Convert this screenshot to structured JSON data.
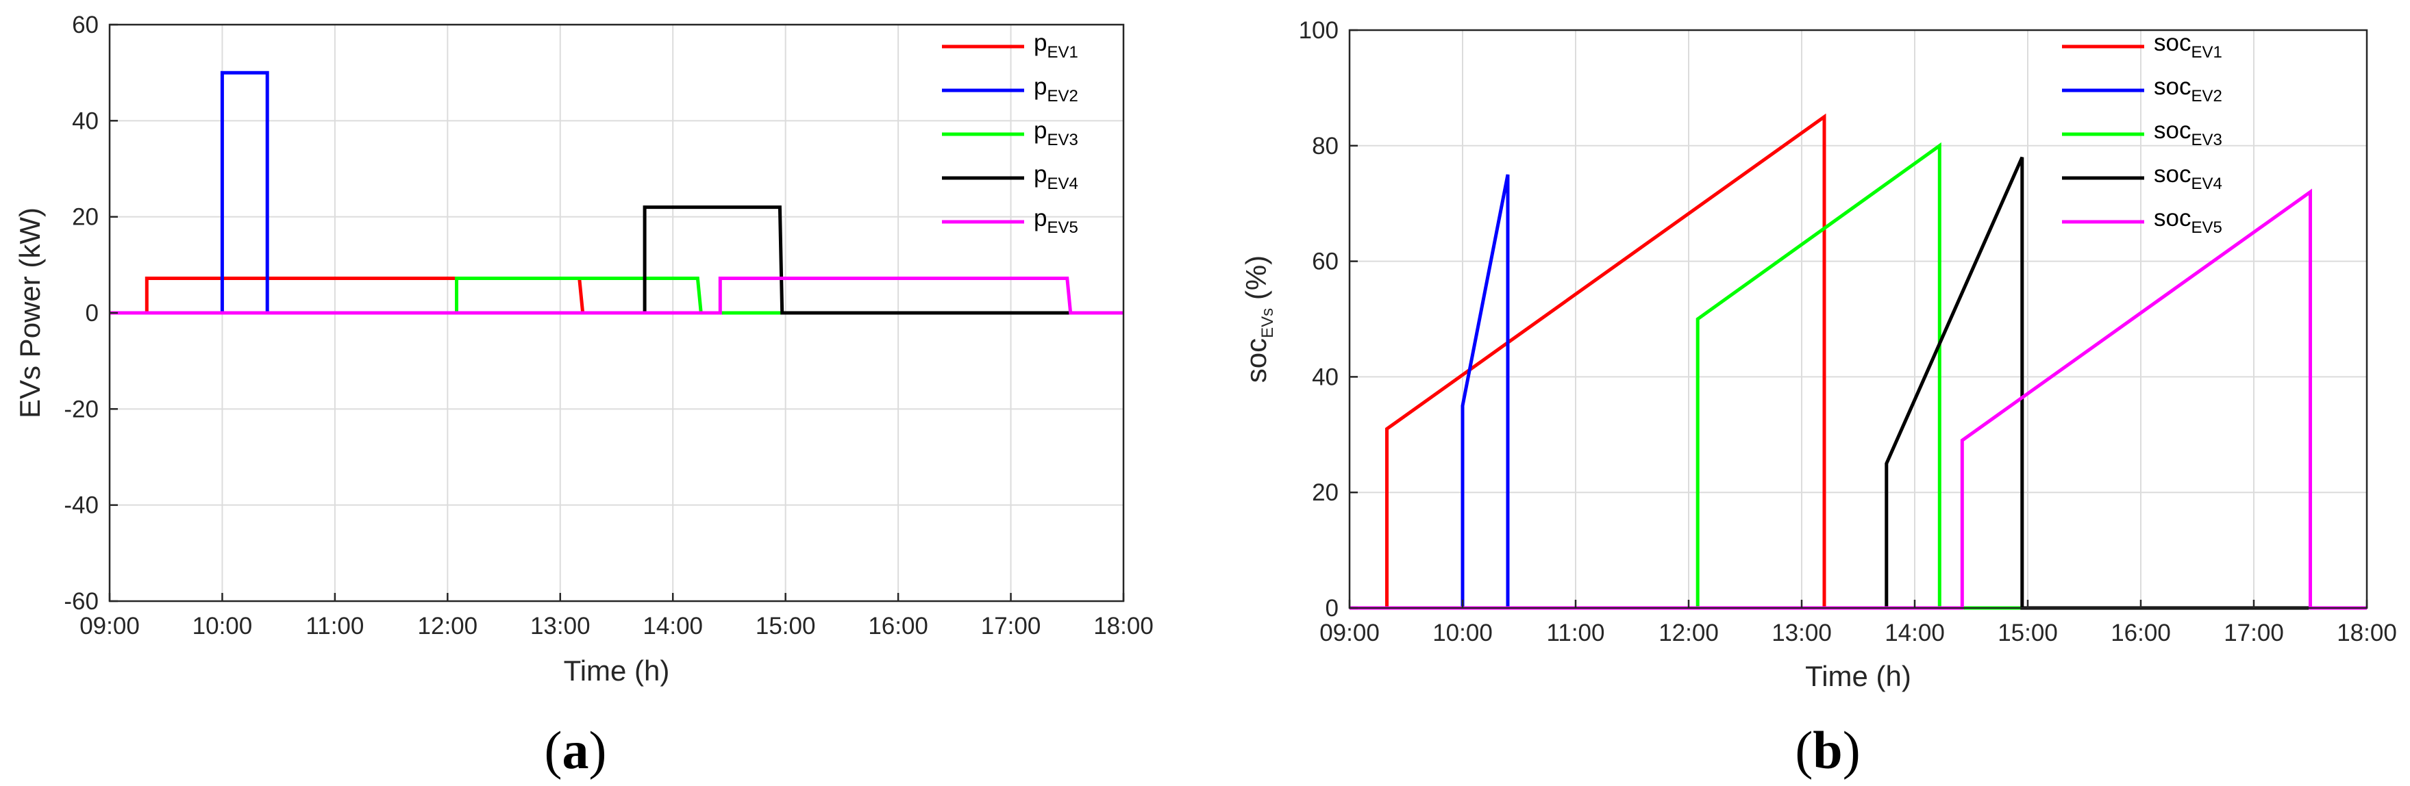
{
  "chart_data": [
    {
      "type": "line",
      "panel_label": "a",
      "xlabel": "Time (h)",
      "ylabel": "EVs Power (kW)",
      "xlim": [
        9,
        18
      ],
      "ylim": [
        -60,
        60
      ],
      "xticks": [
        9,
        10,
        11,
        12,
        13,
        14,
        15,
        16,
        17,
        18
      ],
      "xtick_labels": [
        "09:00",
        "10:00",
        "11:00",
        "12:00",
        "13:00",
        "14:00",
        "15:00",
        "16:00",
        "17:00",
        "18:00"
      ],
      "yticks": [
        -60,
        -40,
        -20,
        0,
        20,
        40,
        60
      ],
      "ytick_labels": [
        "-60",
        "-40",
        "-20",
        "0",
        "20",
        "40",
        "60"
      ],
      "grid": true,
      "legend_position": "top-right",
      "series": [
        {
          "name": "p",
          "sub": "EV1",
          "color": "#ff0000",
          "x": [
            9,
            9.33,
            9.33,
            13.17,
            13.2,
            18
          ],
          "y": [
            0,
            0,
            7.2,
            7.2,
            0,
            0
          ]
        },
        {
          "name": "p",
          "sub": "EV2",
          "color": "#0000ff",
          "x": [
            9,
            10,
            10,
            10.4,
            10.4,
            18
          ],
          "y": [
            0,
            0,
            50,
            50,
            0,
            0
          ]
        },
        {
          "name": "p",
          "sub": "EV3",
          "color": "#00ff00",
          "x": [
            9,
            12.08,
            12.08,
            14.22,
            14.25,
            18
          ],
          "y": [
            0,
            0,
            7.2,
            7.2,
            0,
            0
          ]
        },
        {
          "name": "p",
          "sub": "EV4",
          "color": "#000000",
          "x": [
            9,
            13.75,
            13.75,
            14.95,
            14.97,
            18
          ],
          "y": [
            0,
            0,
            22,
            22,
            0,
            0
          ]
        },
        {
          "name": "p",
          "sub": "EV5",
          "color": "#ff00ff",
          "x": [
            9,
            14.42,
            14.42,
            17.5,
            17.53,
            18
          ],
          "y": [
            0,
            0,
            7.2,
            7.2,
            0,
            0
          ]
        }
      ]
    },
    {
      "type": "line",
      "panel_label": "b",
      "xlabel": "Time (h)",
      "ylabel_main": "soc",
      "ylabel_sub": "EVs",
      "ylabel_unit": " (%)",
      "xlim": [
        9,
        18
      ],
      "ylim": [
        0,
        100
      ],
      "xticks": [
        9,
        10,
        11,
        12,
        13,
        14,
        15,
        16,
        17,
        18
      ],
      "xtick_labels": [
        "09:00",
        "10:00",
        "11:00",
        "12:00",
        "13:00",
        "14:00",
        "15:00",
        "16:00",
        "17:00",
        "18:00"
      ],
      "yticks": [
        0,
        20,
        40,
        60,
        80,
        100
      ],
      "ytick_labels": [
        "0",
        "20",
        "40",
        "60",
        "80",
        "100"
      ],
      "grid": true,
      "legend_position": "top-right",
      "series": [
        {
          "name": "soc",
          "sub": "EV1",
          "color": "#ff0000",
          "x": [
            9,
            9.33,
            9.33,
            13.2,
            13.2,
            18
          ],
          "y": [
            0,
            0,
            31,
            85,
            0,
            0
          ]
        },
        {
          "name": "soc",
          "sub": "EV2",
          "color": "#0000ff",
          "x": [
            9,
            10,
            10,
            10.4,
            10.4,
            18
          ],
          "y": [
            0,
            0,
            35,
            75,
            0,
            0
          ]
        },
        {
          "name": "soc",
          "sub": "EV3",
          "color": "#00ff00",
          "x": [
            9,
            12.08,
            12.08,
            14.22,
            14.22,
            18
          ],
          "y": [
            0,
            0,
            50,
            80,
            0,
            0
          ]
        },
        {
          "name": "soc",
          "sub": "EV4",
          "color": "#000000",
          "x": [
            9,
            13.75,
            13.75,
            14.95,
            14.95,
            18
          ],
          "y": [
            0,
            0,
            25,
            78,
            0,
            0
          ]
        },
        {
          "name": "soc",
          "sub": "EV5",
          "color": "#ff00ff",
          "x": [
            9,
            14.42,
            14.42,
            17.5,
            17.5,
            18
          ],
          "y": [
            0,
            0,
            29,
            72,
            0,
            0
          ]
        }
      ]
    }
  ]
}
